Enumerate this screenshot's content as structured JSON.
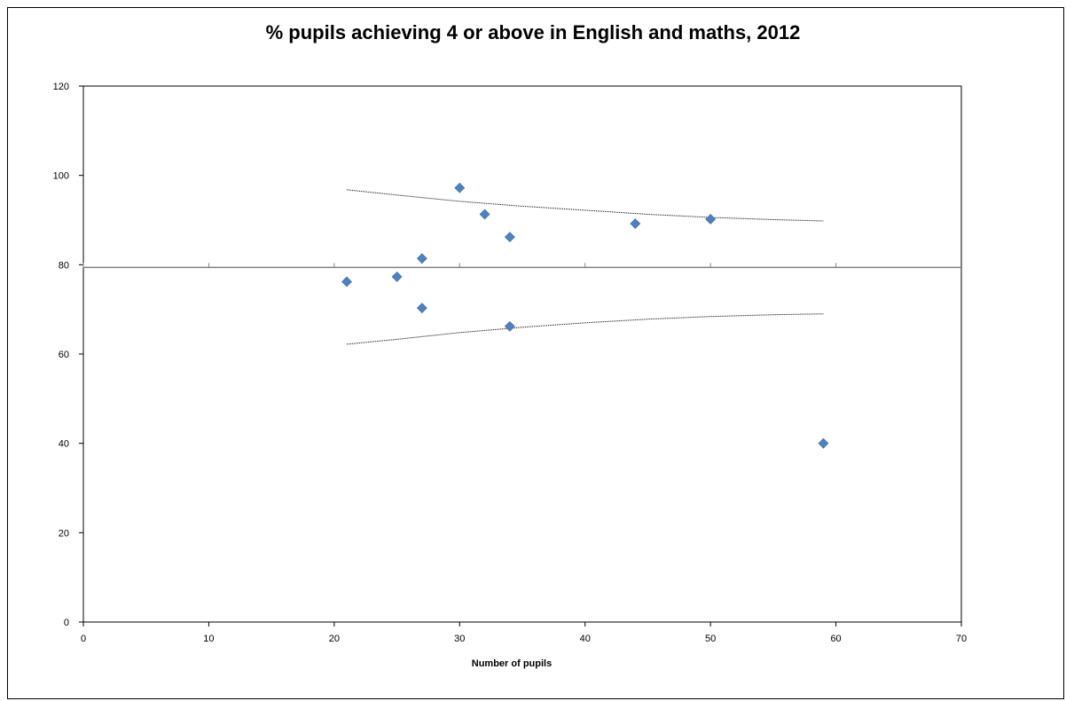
{
  "chart_data": {
    "type": "scatter",
    "title": "% pupils achieving 4 or above in English and maths, 2012",
    "xlabel": "Number of pupils",
    "ylabel": "",
    "xlim": [
      0,
      70
    ],
    "ylim": [
      0,
      120
    ],
    "x_ticks": [
      0,
      10,
      20,
      30,
      40,
      50,
      60,
      70
    ],
    "y_ticks": [
      0,
      20,
      40,
      60,
      80,
      100,
      120
    ],
    "grid": false,
    "legend": "none",
    "marker_color": "#4F81BD",
    "marker_shape": "diamond",
    "series": [
      {
        "points": [
          {
            "x": 21,
            "y": 76.2
          },
          {
            "x": 25,
            "y": 77.3
          },
          {
            "x": 27,
            "y": 81.4
          },
          {
            "x": 27,
            "y": 70.3
          },
          {
            "x": 30,
            "y": 97.2
          },
          {
            "x": 32,
            "y": 91.3
          },
          {
            "x": 34,
            "y": 86.2
          },
          {
            "x": 34,
            "y": 66.2
          },
          {
            "x": 44,
            "y": 89.2
          },
          {
            "x": 50,
            "y": 90.2
          },
          {
            "x": 59,
            "y": 40.0
          }
        ]
      }
    ],
    "reference_line": {
      "y": 79.4,
      "color": "#808080"
    },
    "control_limits": {
      "style": "dotted",
      "color": "#000000",
      "upper": [
        {
          "x": 21,
          "y": 96.8
        },
        {
          "x": 25,
          "y": 95.6
        },
        {
          "x": 30,
          "y": 94.2
        },
        {
          "x": 35,
          "y": 93.1
        },
        {
          "x": 40,
          "y": 92.2
        },
        {
          "x": 45,
          "y": 91.3
        },
        {
          "x": 50,
          "y": 90.6
        },
        {
          "x": 55,
          "y": 90.1
        },
        {
          "x": 59,
          "y": 89.8
        }
      ],
      "lower": [
        {
          "x": 21,
          "y": 62.2
        },
        {
          "x": 25,
          "y": 63.3
        },
        {
          "x": 30,
          "y": 64.8
        },
        {
          "x": 35,
          "y": 66.0
        },
        {
          "x": 40,
          "y": 67.0
        },
        {
          "x": 45,
          "y": 67.8
        },
        {
          "x": 50,
          "y": 68.4
        },
        {
          "x": 55,
          "y": 68.8
        },
        {
          "x": 59,
          "y": 69.0
        }
      ]
    }
  }
}
